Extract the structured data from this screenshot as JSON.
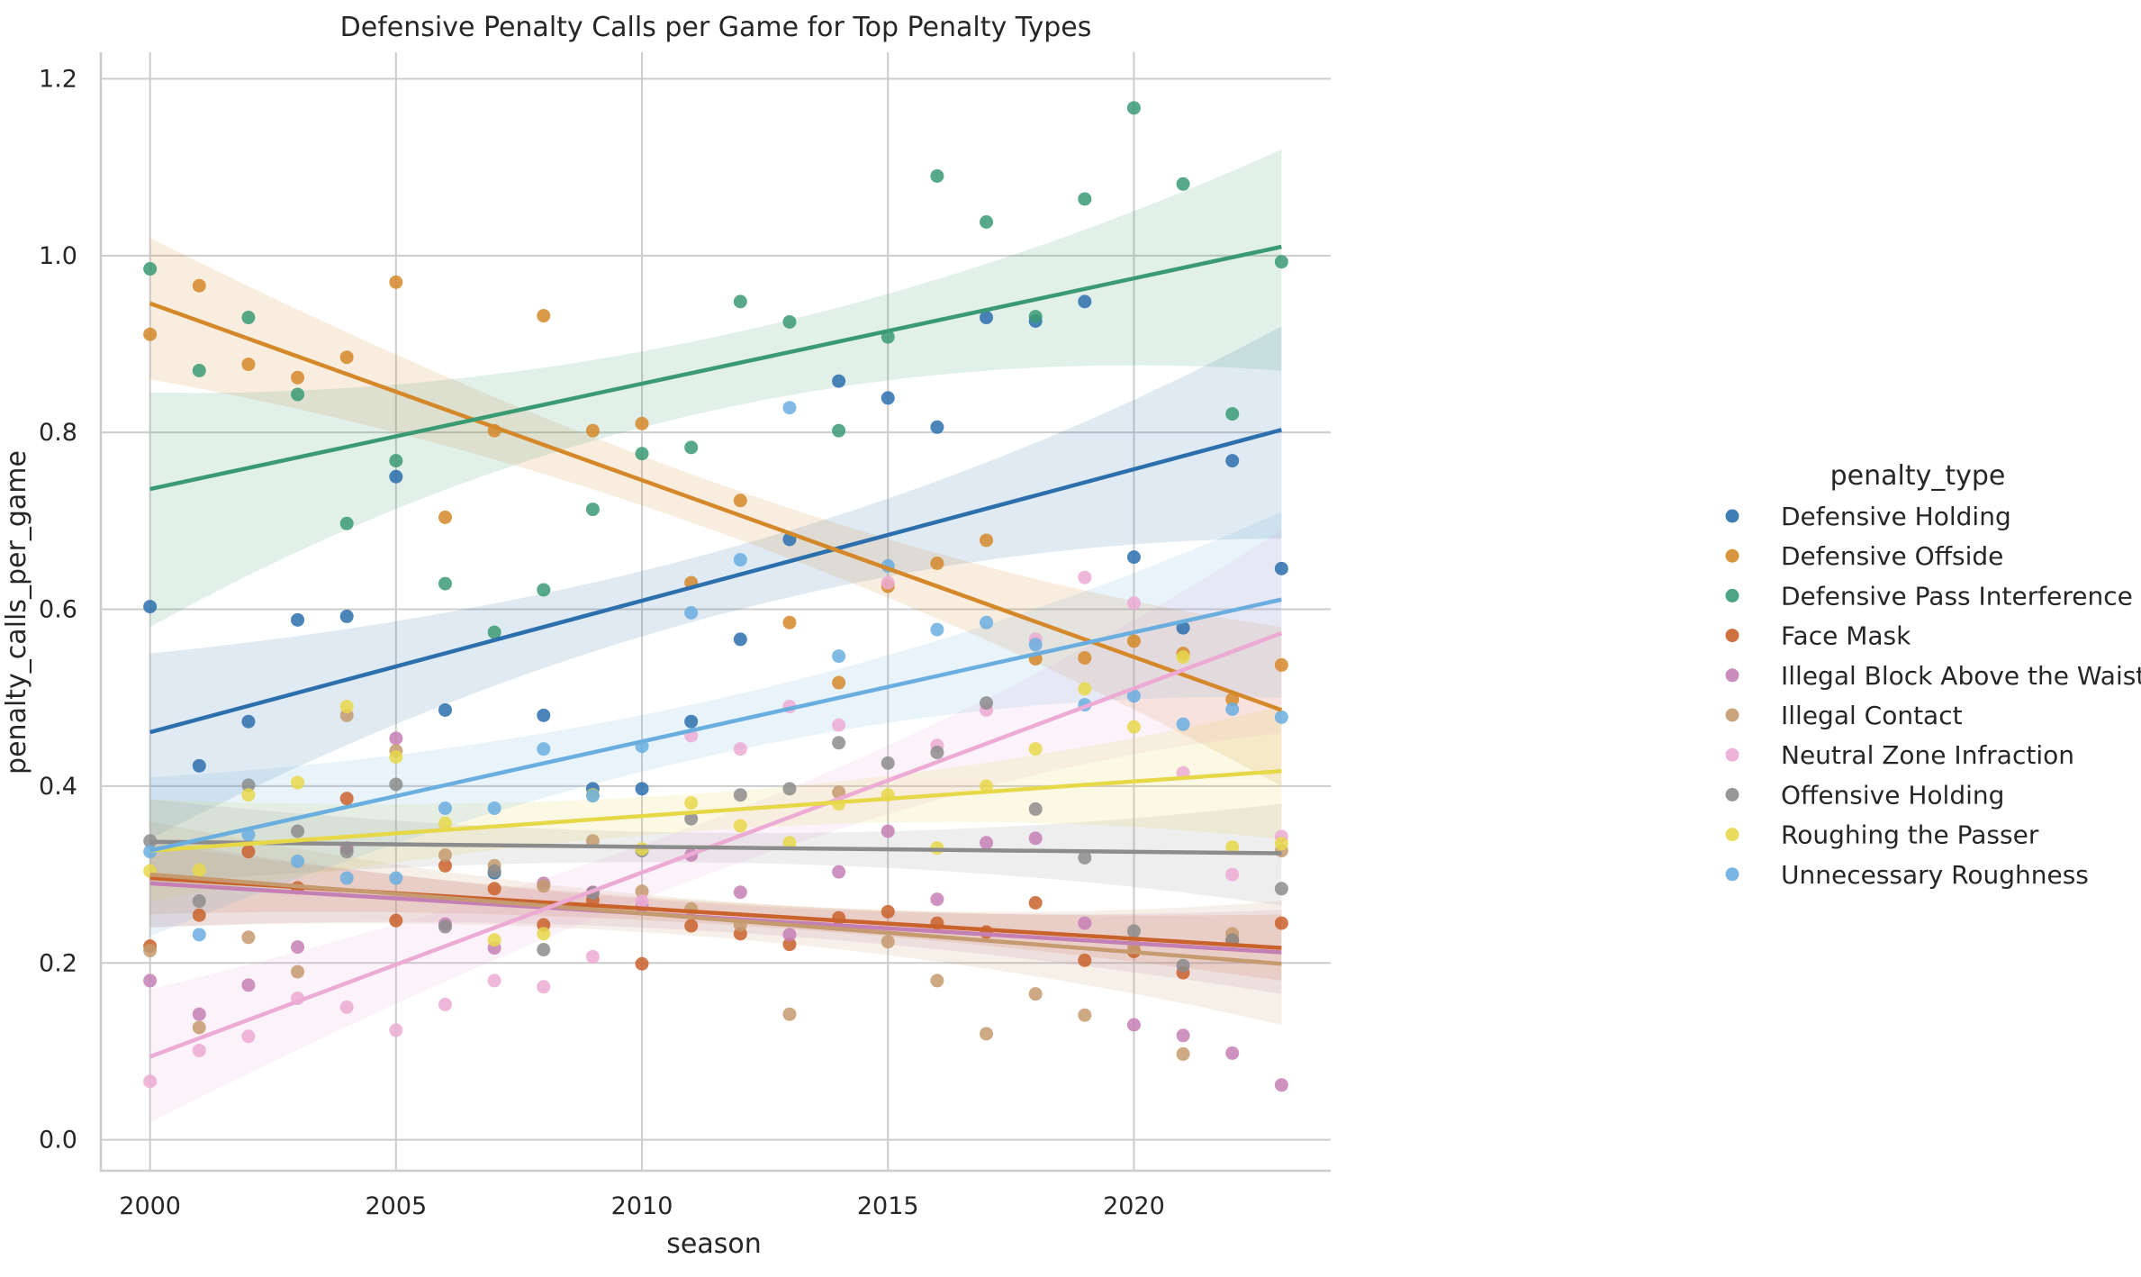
{
  "chart_data": {
    "type": "scatter",
    "title": "Defensive Penalty Calls per Game for Top Penalty Types",
    "xlabel": "season",
    "ylabel": "penalty_calls_per_game",
    "xlim": [
      1999,
      2024
    ],
    "ylim": [
      -0.035,
      1.23
    ],
    "xticks": [
      2000,
      2005,
      2010,
      2015,
      2020
    ],
    "yticks": [
      0.0,
      0.2,
      0.4,
      0.6,
      0.8,
      1.0,
      1.2
    ],
    "xtick_labels": [
      "2000",
      "2005",
      "2010",
      "2015",
      "2020"
    ],
    "ytick_labels": [
      "0.0",
      "0.2",
      "0.4",
      "0.6",
      "0.8",
      "1.0",
      "1.2"
    ],
    "grid": true,
    "legend": {
      "title": "penalty_type",
      "placement": "right"
    },
    "x": [
      2000,
      2001,
      2002,
      2003,
      2004,
      2005,
      2006,
      2007,
      2008,
      2009,
      2010,
      2011,
      2012,
      2013,
      2014,
      2015,
      2016,
      2017,
      2018,
      2019,
      2020,
      2021,
      2022,
      2023
    ],
    "series": [
      {
        "name": "Defensive Holding",
        "color": "#2c6fad",
        "values": [
          0.603,
          0.423,
          0.473,
          0.588,
          0.592,
          0.75,
          0.486,
          0.302,
          0.48,
          0.397,
          0.397,
          0.473,
          0.566,
          0.679,
          0.858,
          0.839,
          0.806,
          0.93,
          0.926,
          0.948,
          0.659,
          0.579,
          0.768,
          0.646
        ],
        "fit": [
          0.461,
          0.803
        ],
        "band_lo": [
          0.34,
          0.68
        ],
        "band_hi": [
          0.55,
          0.92
        ]
      },
      {
        "name": "Defensive Offside",
        "color": "#d5882a",
        "values": [
          0.911,
          0.966,
          0.877,
          0.862,
          0.885,
          0.97,
          0.704,
          0.802,
          0.932,
          0.802,
          0.81,
          0.63,
          0.723,
          0.585,
          0.517,
          0.626,
          0.652,
          0.678,
          0.544,
          0.545,
          0.564,
          0.55,
          0.498,
          0.537
        ],
        "fit": [
          0.946,
          0.486
        ],
        "band_lo": [
          0.86,
          0.4
        ],
        "band_hi": [
          1.02,
          0.58
        ]
      },
      {
        "name": "Defensive Pass Interference",
        "color": "#3a9a74",
        "values": [
          0.985,
          0.87,
          0.93,
          0.843,
          0.697,
          0.768,
          0.629,
          0.574,
          0.622,
          0.713,
          0.776,
          0.783,
          0.948,
          0.925,
          0.802,
          0.908,
          1.09,
          1.038,
          0.931,
          1.064,
          1.167,
          1.081,
          0.821,
          0.993
        ],
        "fit": [
          0.736,
          1.01
        ],
        "band_lo": [
          0.58,
          0.87
        ],
        "band_hi": [
          0.845,
          1.12
        ]
      },
      {
        "name": "Face Mask",
        "color": "#c9622b",
        "values": [
          0.219,
          0.254,
          0.326,
          0.285,
          0.386,
          0.248,
          0.31,
          0.284,
          0.243,
          0.271,
          0.199,
          0.242,
          0.233,
          0.221,
          0.251,
          0.258,
          0.245,
          0.235,
          0.268,
          0.203,
          0.213,
          0.189,
          0.226,
          0.245
        ],
        "fit": [
          0.296,
          0.217
        ],
        "band_lo": [
          0.255,
          0.18
        ],
        "band_hi": [
          0.335,
          0.255
        ]
      },
      {
        "name": "Illegal Block Above the Waist",
        "color": "#c47fb5",
        "values": [
          0.18,
          0.142,
          0.175,
          0.218,
          0.33,
          0.454,
          0.244,
          0.217,
          0.29,
          0.28,
          0.264,
          0.322,
          0.28,
          0.232,
          0.303,
          0.349,
          0.272,
          0.336,
          0.341,
          0.245,
          0.13,
          0.118,
          0.098,
          0.062
        ],
        "fit": [
          0.29,
          0.212
        ],
        "band_lo": [
          0.24,
          0.165
        ],
        "band_hi": [
          0.34,
          0.26
        ]
      },
      {
        "name": "Illegal Contact",
        "color": "#c49a6e",
        "values": [
          0.214,
          0.127,
          0.229,
          0.19,
          0.48,
          0.44,
          0.322,
          0.31,
          0.287,
          0.338,
          0.281,
          0.261,
          0.243,
          0.142,
          0.393,
          0.224,
          0.18,
          0.12,
          0.165,
          0.141,
          0.22,
          0.097,
          0.233,
          0.327
        ],
        "fit": [
          0.3,
          0.199
        ],
        "band_lo": [
          0.24,
          0.13
        ],
        "band_hi": [
          0.36,
          0.27
        ]
      },
      {
        "name": "Neutral Zone Infraction",
        "color": "#ecaad4",
        "values": [
          0.066,
          0.101,
          0.117,
          0.16,
          0.15,
          0.124,
          0.153,
          0.18,
          0.173,
          0.207,
          0.27,
          0.457,
          0.442,
          0.49,
          0.469,
          0.63,
          0.446,
          0.486,
          0.566,
          0.636,
          0.607,
          0.415,
          0.3,
          0.343
        ],
        "fit": [
          0.094,
          0.573
        ],
        "band_lo": [
          0.02,
          0.46
        ],
        "band_hi": [
          0.17,
          0.69
        ]
      },
      {
        "name": "Offensive Holding",
        "color": "#8c8c8c",
        "values": [
          0.338,
          0.27,
          0.401,
          0.349,
          0.326,
          0.402,
          0.241,
          0.304,
          0.215,
          0.279,
          0.327,
          0.363,
          0.39,
          0.397,
          0.449,
          0.426,
          0.438,
          0.494,
          0.374,
          0.319,
          0.236,
          0.197,
          0.226,
          0.284
        ],
        "fit": [
          0.337,
          0.324
        ],
        "band_lo": [
          0.29,
          0.265
        ],
        "band_hi": [
          0.385,
          0.38
        ]
      },
      {
        "name": "Roughing the Passer",
        "color": "#e7d84a",
        "values": [
          0.304,
          0.305,
          0.39,
          0.404,
          0.49,
          0.433,
          0.358,
          0.226,
          0.233,
          0.39,
          0.329,
          0.381,
          0.355,
          0.336,
          0.38,
          0.39,
          0.33,
          0.4,
          0.442,
          0.51,
          0.467,
          0.546,
          0.331,
          0.335
        ],
        "fit": [
          0.327,
          0.417
        ],
        "band_lo": [
          0.27,
          0.34
        ],
        "band_hi": [
          0.385,
          0.49
        ]
      },
      {
        "name": "Unnecessary Roughness",
        "color": "#6aaee0",
        "values": [
          0.326,
          0.232,
          0.345,
          0.315,
          0.296,
          0.296,
          0.375,
          0.375,
          0.442,
          0.389,
          0.445,
          0.596,
          0.656,
          0.828,
          0.547,
          0.649,
          0.577,
          0.585,
          0.56,
          0.492,
          0.502,
          0.47,
          0.487,
          0.478
        ],
        "fit": [
          0.327,
          0.611
        ],
        "band_lo": [
          0.23,
          0.5
        ],
        "band_hi": [
          0.41,
          0.71
        ]
      }
    ]
  }
}
